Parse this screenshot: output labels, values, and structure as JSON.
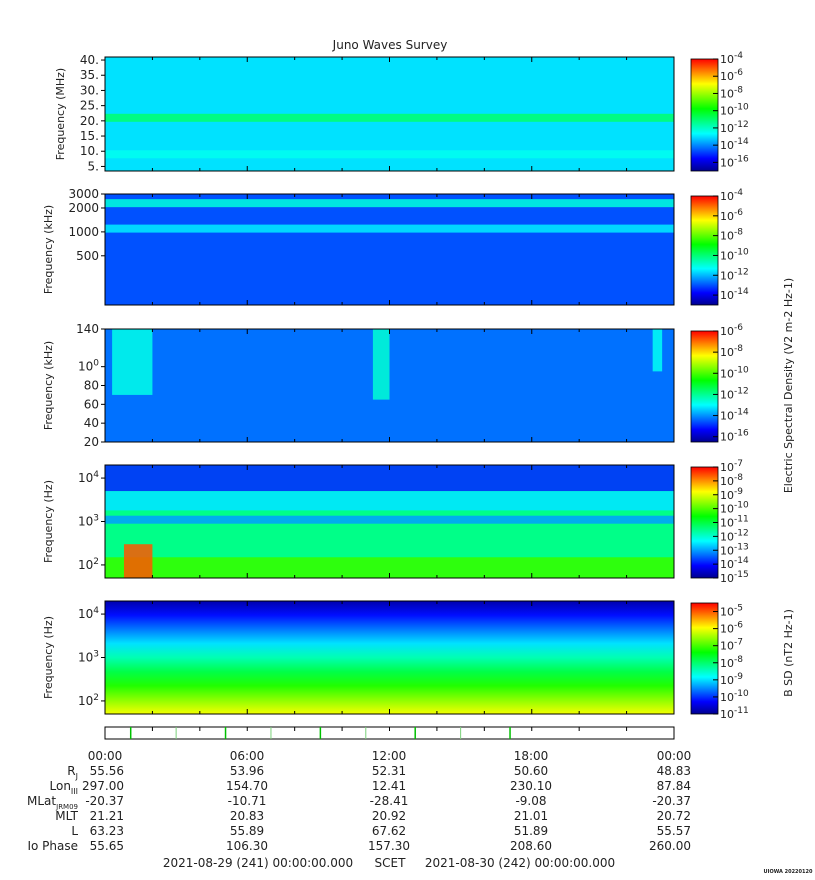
{
  "title": "Juno Waves Survey",
  "colors": {
    "spectrum": [
      "#00008f",
      "#0000ff",
      "#0080ff",
      "#00ffff",
      "#00ff80",
      "#00ff00",
      "#80ff00",
      "#ffff00",
      "#ff8000",
      "#ff0000"
    ],
    "frame": "#000000"
  },
  "chart_data": [
    {
      "type": "heatmap",
      "panel": "hfwbr-high",
      "ylabel": "Frequency (MHz)",
      "yscale": "linear",
      "ylim": [
        3.5,
        41
      ],
      "yticks": [
        "40.",
        "35.",
        "30.",
        "25.",
        "20.",
        "15.",
        "10.",
        "5."
      ],
      "ytick_values": [
        40,
        35,
        30,
        25,
        20,
        15,
        10,
        5
      ],
      "colorbar": {
        "ticks": [
          "10-4",
          "10-6",
          "10-8",
          "10-10",
          "10-12",
          "10-14",
          "10-16"
        ],
        "exponents": [
          -4,
          -6,
          -8,
          -10,
          -12,
          -14,
          -16
        ],
        "range": [
          -17,
          -4
        ]
      },
      "background_level": -13,
      "features": [
        {
          "kind": "band",
          "y": 21,
          "level": -11
        },
        {
          "kind": "band",
          "y": 9,
          "level": -12.5
        }
      ]
    },
    {
      "type": "heatmap",
      "panel": "hfwbr-low",
      "ylabel": "Frequency (kHz)",
      "yscale": "log",
      "ylim": [
        120,
        3000
      ],
      "yticks": [
        "3000",
        "2000",
        "1000",
        "500"
      ],
      "ytick_values": [
        3000,
        2000,
        1000,
        500
      ],
      "colorbar": {
        "ticks": [
          "10-4",
          "10-6",
          "10-8",
          "10-10",
          "10-12",
          "10-14"
        ],
        "exponents": [
          -4,
          -6,
          -8,
          -10,
          -12,
          -14
        ],
        "range": [
          -15,
          -4
        ]
      },
      "background_level": -13,
      "features": [
        {
          "kind": "band",
          "y": 2300,
          "level": -11
        },
        {
          "kind": "band",
          "y": 1100,
          "level": -11.5
        }
      ]
    },
    {
      "type": "heatmap",
      "panel": "lfr-high",
      "ylabel": "Frequency (kHz)",
      "yscale": "linear",
      "ylim": [
        20,
        140
      ],
      "yticks": [
        "140",
        "100",
        "80",
        "60",
        "40",
        "20"
      ],
      "ytick_values": [
        140,
        100,
        80,
        60,
        40,
        20
      ],
      "colorbar": {
        "ticks": [
          "10-6",
          "10-8",
          "10-10",
          "10-12",
          "10-14",
          "10-16"
        ],
        "exponents": [
          -6,
          -8,
          -10,
          -12,
          -14,
          -16
        ],
        "range": [
          -16.5,
          -6
        ]
      },
      "colorbar_label": "Electric Spectral Density (V2 m-2 Hz-1)",
      "background_level": -14.3,
      "features": [
        {
          "kind": "patch",
          "t": [
            0.3,
            2.0
          ],
          "f": [
            70,
            140
          ],
          "level": -12.8
        },
        {
          "kind": "patch",
          "t": [
            11.3,
            12.0
          ],
          "f": [
            65,
            140
          ],
          "level": -12.6
        },
        {
          "kind": "patch",
          "t": [
            23.1,
            23.5
          ],
          "f": [
            95,
            140
          ],
          "level": -12.9
        }
      ]
    },
    {
      "type": "heatmap",
      "panel": "lfr-low",
      "ylabel": "Frequency (Hz)",
      "yscale": "log",
      "ylim": [
        50,
        20000
      ],
      "yticks": [
        "104",
        "103",
        "102"
      ],
      "ytick_values": [
        10000,
        1000,
        100
      ],
      "colorbar": {
        "ticks": [
          "10-7",
          "10-8",
          "10-9",
          "10-10",
          "10-11",
          "10-12",
          "10-13",
          "10-14",
          "10-15"
        ],
        "exponents": [
          -7,
          -8,
          -9,
          -10,
          -11,
          -12,
          -13,
          -14,
          -15
        ],
        "range": [
          -15,
          -7
        ]
      },
      "background_level": -11.5,
      "features": [
        {
          "kind": "region",
          "f": [
            5000,
            20000
          ],
          "level": -13.8
        },
        {
          "kind": "region",
          "f": [
            1800,
            5000
          ],
          "level": -12.5
        },
        {
          "kind": "region",
          "f": [
            50,
            150
          ],
          "level": -10.2
        },
        {
          "kind": "band",
          "y": 1100,
          "level": -13
        },
        {
          "kind": "patch",
          "t": [
            0.8,
            2.0
          ],
          "f": [
            50,
            300
          ],
          "level": -7.6
        }
      ]
    },
    {
      "type": "heatmap",
      "panel": "magnetic",
      "ylabel": "Frequency (Hz)",
      "yscale": "log",
      "ylim": [
        50,
        20000
      ],
      "yticks": [
        "104",
        "103",
        "102"
      ],
      "ytick_values": [
        10000,
        1000,
        100
      ],
      "colorbar": {
        "ticks": [
          "10-5",
          "10-6",
          "10-7",
          "10-8",
          "10-9",
          "10-10",
          "10-11"
        ],
        "exponents": [
          -5,
          -6,
          -7,
          -8,
          -9,
          -10,
          -11
        ],
        "range": [
          -11,
          -4.5
        ]
      },
      "colorbar_label": "B SD (nT2 Hz-1)",
      "background_level": -10,
      "features": [
        {
          "kind": "gradient",
          "f": [
            50,
            20000
          ],
          "levels": [
            -6,
            -10.8
          ]
        }
      ]
    }
  ],
  "ephemeris": {
    "time_labels": [
      "00:00",
      "06:00",
      "12:00",
      "18:00",
      "00:00"
    ],
    "rows": [
      {
        "label": "RJ",
        "values": [
          "55.56",
          "53.96",
          "52.31",
          "50.60",
          "48.83"
        ]
      },
      {
        "label": "LonIII",
        "values": [
          "297.00",
          "154.70",
          "12.41",
          "230.10",
          "87.84"
        ]
      },
      {
        "label": "MLatJRM09",
        "values": [
          "-20.37",
          "-10.71",
          "-28.41",
          "-9.08",
          "-20.37"
        ]
      },
      {
        "label": "MLT",
        "values": [
          "21.21",
          "20.83",
          "20.92",
          "21.01",
          "20.72"
        ]
      },
      {
        "label": "L",
        "values": [
          "63.23",
          "55.89",
          "67.62",
          "51.89",
          "55.57"
        ]
      },
      {
        "label": "Io Phase",
        "values": [
          "55.65",
          "106.30",
          "157.30",
          "208.60",
          "260.00"
        ]
      }
    ]
  },
  "footer": {
    "start": "2021-08-29 (241) 00:00:00.000",
    "scet": "SCET",
    "end": "2021-08-30 (242) 00:00:00.000",
    "credit": "UIOWA 20220120"
  }
}
